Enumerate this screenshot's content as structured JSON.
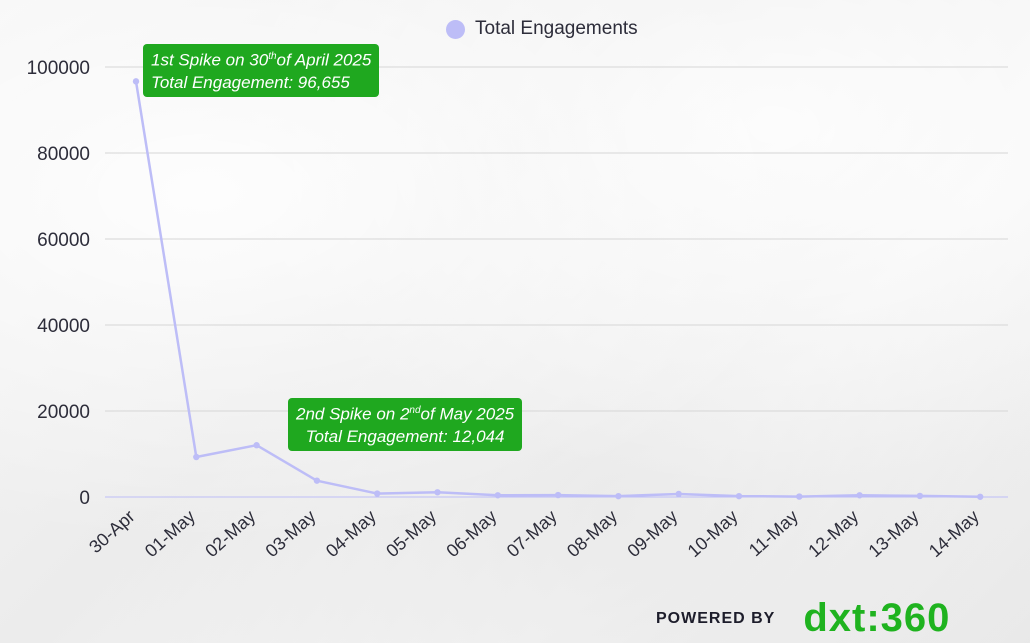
{
  "chart_data": {
    "type": "line",
    "categories": [
      "30-Apr",
      "01-May",
      "02-May",
      "03-May",
      "04-May",
      "05-May",
      "06-May",
      "07-May",
      "08-May",
      "09-May",
      "10-May",
      "11-May",
      "12-May",
      "13-May",
      "14-May"
    ],
    "series": [
      {
        "name": "Total Engagements",
        "color": "#bdbdf7",
        "values": [
          96655,
          9300,
          12044,
          3800,
          800,
          1100,
          400,
          450,
          200,
          700,
          200,
          100,
          400,
          250,
          50
        ]
      }
    ],
    "ylim": [
      0,
      100000
    ],
    "yticks": [
      "0",
      "20000",
      "40000",
      "60000",
      "80000",
      "100000"
    ],
    "grid": true,
    "legend_position": "top-center",
    "annotations": [
      {
        "line1_prefix": "1st Spike on 30",
        "line1_sup": "th",
        "line1_suffix": "of April 2025",
        "line2": "Total Engagement:  96,655"
      },
      {
        "line1_prefix": "2nd Spike on 2",
        "line1_sup": "nd",
        "line1_suffix": "of May 2025",
        "line2": "Total Engagement: 12,044"
      }
    ]
  },
  "footer": {
    "powered_by": "POWERED BY",
    "logo_text": "dxt:360"
  },
  "colors": {
    "annotation_bg": "#1fa81f",
    "logo": "#1fb31f",
    "grid": "#d6d6d6"
  }
}
